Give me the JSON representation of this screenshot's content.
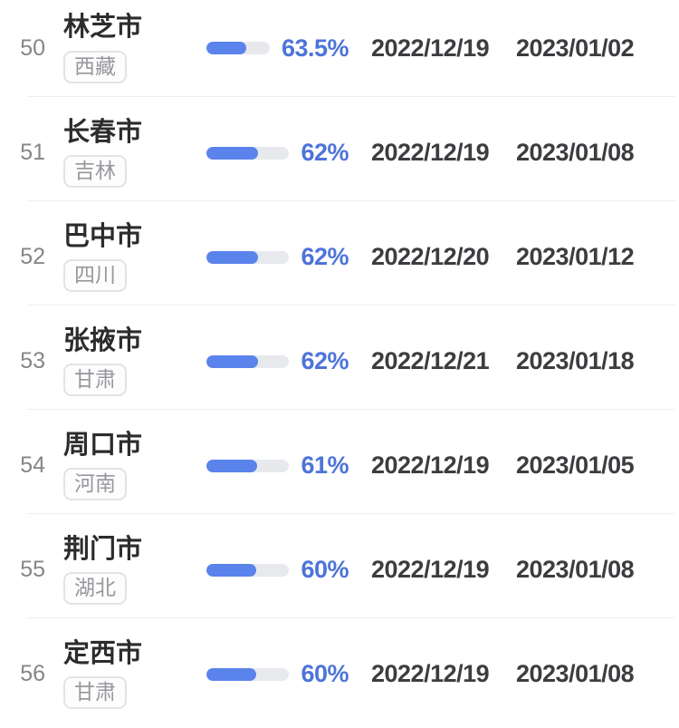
{
  "colors": {
    "bar_fill": "#5b83ec",
    "bar_track": "#e7e9ec",
    "percent_text": "#4d74d9",
    "date_text": "#3d3d41",
    "rank_text": "#85858b",
    "city_text": "#2c2c2e",
    "tag_text": "#97979d",
    "tag_border": "#e3e3e6",
    "separator": "#eeeef0",
    "background": "#ffffff"
  },
  "rows": [
    {
      "rank": "50",
      "city": "林芝市",
      "province": "西藏",
      "percent": "63.5%",
      "value": 63.5,
      "start_date": "2022/12/19",
      "end_date": "2023/01/02"
    },
    {
      "rank": "51",
      "city": "长春市",
      "province": "吉林",
      "percent": "62%",
      "value": 62,
      "start_date": "2022/12/19",
      "end_date": "2023/01/08"
    },
    {
      "rank": "52",
      "city": "巴中市",
      "province": "四川",
      "percent": "62%",
      "value": 62,
      "start_date": "2022/12/20",
      "end_date": "2023/01/12"
    },
    {
      "rank": "53",
      "city": "张掖市",
      "province": "甘肃",
      "percent": "62%",
      "value": 62,
      "start_date": "2022/12/21",
      "end_date": "2023/01/18"
    },
    {
      "rank": "54",
      "city": "周口市",
      "province": "河南",
      "percent": "61%",
      "value": 61,
      "start_date": "2022/12/19",
      "end_date": "2023/01/05"
    },
    {
      "rank": "55",
      "city": "荆门市",
      "province": "湖北",
      "percent": "60%",
      "value": 60,
      "start_date": "2022/12/19",
      "end_date": "2023/01/08"
    },
    {
      "rank": "56",
      "city": "定西市",
      "province": "甘肃",
      "percent": "60%",
      "value": 60,
      "start_date": "2022/12/19",
      "end_date": "2023/01/08"
    }
  ],
  "chart_data": {
    "type": "table",
    "columns": [
      "rank",
      "city",
      "province",
      "percent",
      "start_date",
      "end_date"
    ],
    "categories": [
      "林芝市",
      "长春市",
      "巴中市",
      "张掖市",
      "周口市",
      "荆门市",
      "定西市"
    ],
    "series": [
      {
        "name": "percent",
        "values": [
          63.5,
          62,
          62,
          62,
          61,
          60,
          60
        ]
      }
    ],
    "bar_range": [
      0,
      100
    ],
    "rows": [
      [
        "50",
        "林芝市",
        "西藏",
        "63.5%",
        "2022/12/19",
        "2023/01/02"
      ],
      [
        "51",
        "长春市",
        "吉林",
        "62%",
        "2022/12/19",
        "2023/01/08"
      ],
      [
        "52",
        "巴中市",
        "四川",
        "62%",
        "2022/12/20",
        "2023/01/12"
      ],
      [
        "53",
        "张掖市",
        "甘肃",
        "62%",
        "2022/12/21",
        "2023/01/18"
      ],
      [
        "54",
        "周口市",
        "河南",
        "61%",
        "2022/12/19",
        "2023/01/05"
      ],
      [
        "55",
        "荆门市",
        "湖北",
        "60%",
        "2022/12/19",
        "2023/01/08"
      ],
      [
        "56",
        "定西市",
        "甘肃",
        "60%",
        "2022/12/19",
        "2023/01/08"
      ]
    ]
  }
}
